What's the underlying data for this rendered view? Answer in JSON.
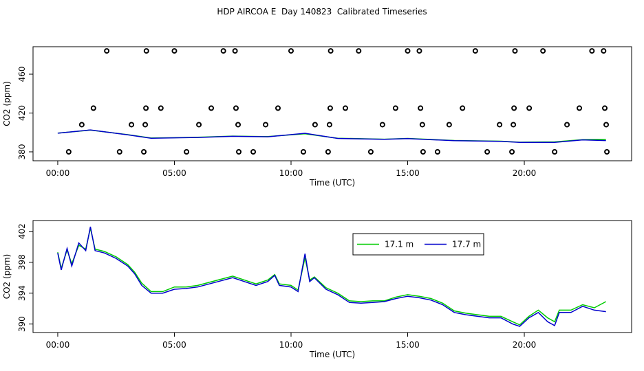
{
  "chart_data": [
    {
      "type": "scatter",
      "title": "HDP AIRCOA E  Day 140823  Calibrated Timeseries",
      "xlabel": "Time (UTC)",
      "ylabel": "CO2 (ppm)",
      "xlim": [
        -1.06,
        24.6
      ],
      "ylim": [
        370.8,
        488.3
      ],
      "xticks": [
        {
          "value": 0,
          "label": "00:00"
        },
        {
          "value": 5,
          "label": "05:00"
        },
        {
          "value": 10,
          "label": "10:00"
        },
        {
          "value": 15,
          "label": "15:00"
        },
        {
          "value": 20,
          "label": "20:00"
        }
      ],
      "yticks": [
        380,
        420,
        460
      ],
      "points_color": "#000000",
      "points_x": [
        2.1,
        3.8,
        5.0,
        7.1,
        7.6,
        10.0,
        11.7,
        12.9,
        15.0,
        15.5,
        17.9,
        19.6,
        20.8,
        22.9,
        23.4,
        1.53,
        3.78,
        4.42,
        6.58,
        7.64,
        9.44,
        11.68,
        12.33,
        14.48,
        15.55,
        17.35,
        19.56,
        20.21,
        22.36,
        23.45,
        1.03,
        3.16,
        3.75,
        6.05,
        7.73,
        8.91,
        11.03,
        11.65,
        13.92,
        15.63,
        16.78,
        18.94,
        19.53,
        21.83,
        23.51,
        0.47,
        2.65,
        3.69,
        5.52,
        7.76,
        8.38,
        10.53,
        11.59,
        13.42,
        15.66,
        16.28,
        18.41,
        19.47,
        21.3,
        23.54
      ],
      "points_y": [
        484,
        484,
        484,
        484,
        484,
        484,
        484,
        484,
        484,
        484,
        484,
        484,
        484,
        484,
        484,
        425,
        425,
        425,
        425,
        425,
        425,
        425,
        425,
        425,
        425,
        425,
        425,
        425,
        425,
        425,
        408,
        408,
        408,
        408,
        408,
        408,
        408,
        408,
        408,
        408,
        408,
        408,
        408,
        408,
        408,
        380,
        380,
        380,
        380,
        380,
        380,
        380,
        380,
        380,
        380,
        380,
        380,
        380,
        380,
        380
      ],
      "x": [
        0,
        1.4,
        3.0,
        4.0,
        6.0,
        7.5,
        9.0,
        10.6,
        12.0,
        14.0,
        15.0,
        17.0,
        19.0,
        19.8,
        21.3,
        22.5,
        23.5
      ],
      "series": [
        {
          "color": "#00cc00",
          "values": [
            399.3,
            402.4,
            397.7,
            394.2,
            395.0,
            396.2,
            395.7,
            398.6,
            394.0,
            393.0,
            393.8,
            391.7,
            391.0,
            389.9,
            390.3,
            392.5,
            392.9
          ]
        },
        {
          "color": "#0000cc",
          "values": [
            399.2,
            402.6,
            397.5,
            394.0,
            394.8,
            396.0,
            395.5,
            399.1,
            393.8,
            392.9,
            393.6,
            391.5,
            390.8,
            389.7,
            389.8,
            392.3,
            391.6
          ]
        }
      ]
    },
    {
      "type": "line",
      "xlabel": "Time (UTC)",
      "ylabel": "CO2 (ppm)",
      "xlim": [
        -1.06,
        24.6
      ],
      "ylim": [
        388.9,
        403.4
      ],
      "xticks": [
        {
          "value": 0,
          "label": "00:00"
        },
        {
          "value": 5,
          "label": "05:00"
        },
        {
          "value": 10,
          "label": "10:00"
        },
        {
          "value": 15,
          "label": "15:00"
        },
        {
          "value": 20,
          "label": "20:00"
        }
      ],
      "yticks": [
        390,
        394,
        398,
        402
      ],
      "legend": "top-right",
      "x": [
        0,
        0.15,
        0.4,
        0.6,
        0.9,
        1.2,
        1.4,
        1.6,
        2.0,
        2.5,
        3.0,
        3.3,
        3.6,
        4.0,
        4.5,
        5.0,
        5.5,
        6.0,
        6.5,
        7.0,
        7.5,
        8.0,
        8.5,
        9.0,
        9.3,
        9.5,
        10.0,
        10.3,
        10.6,
        10.8,
        11.0,
        11.5,
        12.0,
        12.5,
        13.0,
        13.5,
        14.0,
        14.5,
        15.0,
        15.5,
        16.0,
        16.5,
        17.0,
        17.5,
        18.0,
        18.5,
        19.0,
        19.5,
        19.8,
        20.2,
        20.6,
        21.0,
        21.3,
        21.5,
        22.0,
        22.5,
        23.0,
        23.5
      ],
      "series": [
        {
          "name": "17.1 m",
          "color": "#00cc00",
          "values": [
            399.3,
            397.2,
            399.6,
            397.8,
            400.2,
            399.7,
            402.4,
            399.7,
            399.4,
            398.7,
            397.7,
            396.7,
            395.3,
            394.2,
            394.2,
            394.8,
            394.8,
            395.0,
            395.4,
            395.8,
            396.2,
            395.7,
            395.2,
            395.7,
            396.4,
            395.2,
            395.0,
            394.4,
            398.6,
            395.7,
            396.1,
            394.7,
            394.0,
            393.0,
            392.9,
            393.0,
            393.0,
            393.5,
            393.8,
            393.6,
            393.3,
            392.7,
            391.7,
            391.4,
            391.2,
            391.0,
            391.0,
            390.3,
            389.9,
            391.0,
            391.8,
            390.8,
            390.3,
            391.8,
            391.8,
            392.5,
            392.1,
            392.9
          ]
        },
        {
          "name": "17.7 m",
          "color": "#0000cc",
          "values": [
            399.2,
            397.0,
            399.8,
            397.5,
            400.5,
            399.5,
            402.6,
            399.5,
            399.2,
            398.5,
            397.5,
            396.5,
            395.0,
            394.0,
            394.0,
            394.5,
            394.6,
            394.8,
            395.2,
            395.6,
            396.0,
            395.5,
            395.0,
            395.5,
            396.3,
            395.0,
            394.8,
            394.2,
            399.1,
            395.5,
            396.0,
            394.5,
            393.8,
            392.8,
            392.7,
            392.8,
            392.9,
            393.3,
            393.6,
            393.4,
            393.1,
            392.5,
            391.5,
            391.2,
            391.0,
            390.8,
            390.8,
            390.0,
            389.7,
            390.8,
            391.5,
            390.3,
            389.8,
            391.5,
            391.5,
            392.3,
            391.8,
            391.6
          ]
        }
      ]
    }
  ]
}
